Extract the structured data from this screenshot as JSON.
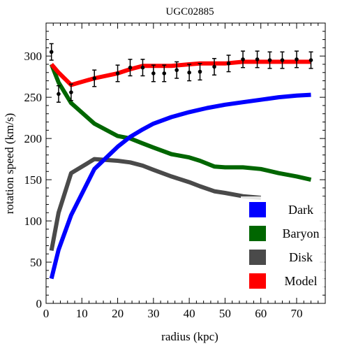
{
  "chart_data": {
    "type": "line",
    "title": "UGC02885",
    "xlabel": "radius (kpc)",
    "ylabel": "rotation speed (km/s)",
    "xlim": [
      0,
      78
    ],
    "ylim": [
      0,
      340
    ],
    "xticks": [
      0,
      10,
      20,
      30,
      40,
      50,
      60,
      70
    ],
    "yticks": [
      0,
      50,
      100,
      150,
      200,
      250,
      300
    ],
    "legend_position": "bottom-right",
    "series": [
      {
        "name": "Dark",
        "color": "#0000ff",
        "x": [
          1.5,
          3.5,
          7,
          13.5,
          20,
          23.5,
          27,
          30,
          35,
          40,
          45,
          50,
          55,
          60,
          65,
          70,
          74
        ],
        "y": [
          30,
          65,
          107,
          163,
          190,
          202,
          211,
          218,
          226,
          232,
          237,
          241,
          244,
          247,
          250,
          252,
          253
        ]
      },
      {
        "name": "Baryon",
        "color": "#006600",
        "x": [
          1.5,
          3.5,
          7,
          13.5,
          20,
          23.5,
          27,
          30,
          35,
          40,
          43,
          47,
          50,
          55,
          60,
          65,
          70,
          74
        ],
        "y": [
          290,
          268,
          243,
          218,
          203,
          200,
          194,
          189,
          181,
          177,
          173,
          166,
          165,
          165,
          163,
          158,
          154,
          150
        ]
      },
      {
        "name": "Disk",
        "color": "#4a4a4a",
        "x": [
          1.5,
          3.5,
          7,
          13.5,
          20,
          23.5,
          27,
          30,
          35,
          40,
          43,
          47,
          50,
          55,
          60
        ],
        "y": [
          64,
          110,
          158,
          175,
          173,
          171,
          167,
          162,
          154,
          147,
          142,
          136,
          134,
          130,
          128
        ]
      },
      {
        "name": "Model",
        "color": "#ff0000",
        "x": [
          1.5,
          3.5,
          7,
          13.5,
          20,
          23.5,
          27,
          30,
          35,
          40,
          43,
          47,
          50,
          55,
          60,
          65,
          70,
          74
        ],
        "y": [
          290,
          280,
          265,
          273,
          279,
          284,
          288,
          288,
          288,
          290,
          291,
          291,
          291,
          293,
          293,
          293,
          293,
          293
        ]
      }
    ],
    "observed": {
      "color": "#000000",
      "x": [
        1.5,
        3.5,
        7,
        13.5,
        20,
        23.5,
        27,
        30,
        33,
        36.5,
        40,
        43,
        47,
        51,
        55,
        59,
        62.5,
        66,
        70,
        74
      ],
      "y": [
        305,
        254,
        256,
        273,
        279,
        286,
        286,
        279,
        279,
        283,
        280,
        281,
        287,
        291,
        296,
        296,
        295,
        295,
        296,
        295
      ],
      "err": [
        10,
        10,
        10,
        10,
        10,
        10,
        10,
        10,
        10,
        10,
        10,
        10,
        10,
        10,
        10,
        10,
        10,
        10,
        10,
        10
      ]
    }
  }
}
